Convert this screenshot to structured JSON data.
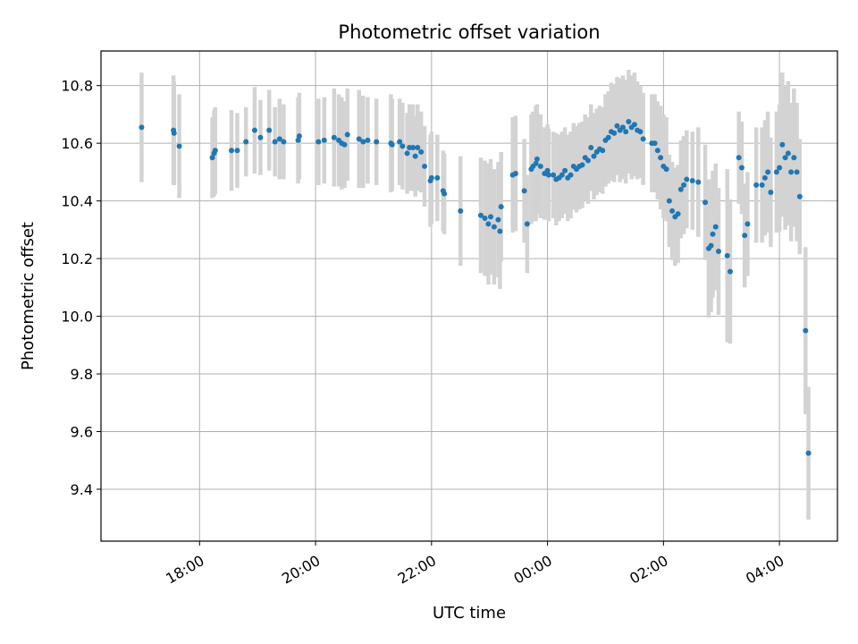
{
  "chart_data": {
    "type": "scatter",
    "title": "Photometric offset variation",
    "xlabel": "UTC time",
    "ylabel": "Photometric offset",
    "x_unit": "hours relative to 00:00 UTC",
    "xlim": [
      -3.7,
      9.0
    ],
    "ylim": [
      9.22,
      10.92
    ],
    "x_ticks": [
      {
        "value": -2,
        "label": "18:00"
      },
      {
        "value": 0,
        "label": "20:00"
      },
      {
        "value": 2,
        "label": "22:00"
      },
      {
        "value": 4,
        "label": "00:00"
      },
      {
        "value": 6,
        "label": "02:00"
      },
      {
        "value": 8,
        "label": "04:00"
      }
    ],
    "y_ticks": [
      {
        "value": 9.4,
        "label": "9.4"
      },
      {
        "value": 9.6,
        "label": "9.6"
      },
      {
        "value": 9.8,
        "label": "9.8"
      },
      {
        "value": 10.0,
        "label": "10.0"
      },
      {
        "value": 10.2,
        "label": "10.2"
      },
      {
        "value": 10.4,
        "label": "10.4"
      },
      {
        "value": 10.6,
        "label": "10.6"
      },
      {
        "value": 10.8,
        "label": "10.8"
      }
    ],
    "grid": true,
    "colors": {
      "points": "#1f77b4",
      "errorbars": "#d3d3d3",
      "grid": "#b0b0b0"
    },
    "series": [
      {
        "points": [
          [
            -3.0,
            10.655,
            0.19
          ],
          [
            -2.45,
            10.645,
            0.19
          ],
          [
            -2.44,
            10.635,
            0.18
          ],
          [
            -2.35,
            10.59,
            0.18
          ],
          [
            -1.78,
            10.55,
            0.14
          ],
          [
            -1.75,
            10.565,
            0.15
          ],
          [
            -1.73,
            10.575,
            0.15
          ],
          [
            -1.45,
            10.575,
            0.14
          ],
          [
            -1.35,
            10.575,
            0.13
          ],
          [
            -1.2,
            10.605,
            0.12
          ],
          [
            -1.05,
            10.645,
            0.15
          ],
          [
            -0.95,
            10.62,
            0.13
          ],
          [
            -0.8,
            10.645,
            0.14
          ],
          [
            -0.7,
            10.605,
            0.12
          ],
          [
            -0.62,
            10.615,
            0.14
          ],
          [
            -0.55,
            10.605,
            0.13
          ],
          [
            -0.3,
            10.61,
            0.15
          ],
          [
            -0.28,
            10.625,
            0.15
          ],
          [
            0.05,
            10.605,
            0.15
          ],
          [
            0.15,
            10.61,
            0.15
          ],
          [
            0.32,
            10.62,
            0.17
          ],
          [
            0.4,
            10.61,
            0.16
          ],
          [
            0.45,
            10.6,
            0.16
          ],
          [
            0.5,
            10.595,
            0.15
          ],
          [
            0.55,
            10.63,
            0.16
          ],
          [
            0.75,
            10.615,
            0.17
          ],
          [
            0.82,
            10.605,
            0.16
          ],
          [
            0.9,
            10.61,
            0.15
          ],
          [
            1.05,
            10.605,
            0.15
          ],
          [
            1.3,
            10.6,
            0.17
          ],
          [
            1.32,
            10.595,
            0.16
          ],
          [
            1.45,
            10.605,
            0.15
          ],
          [
            1.5,
            10.59,
            0.15
          ],
          [
            1.58,
            10.565,
            0.14
          ],
          [
            1.62,
            10.585,
            0.15
          ],
          [
            1.68,
            10.585,
            0.15
          ],
          [
            1.72,
            10.555,
            0.14
          ],
          [
            1.76,
            10.585,
            0.15
          ],
          [
            1.82,
            10.57,
            0.14
          ],
          [
            1.88,
            10.52,
            0.14
          ],
          [
            1.98,
            10.47,
            0.16
          ],
          [
            2.0,
            10.48,
            0.16
          ],
          [
            2.1,
            10.48,
            0.15
          ],
          [
            2.2,
            10.435,
            0.14
          ],
          [
            2.22,
            10.425,
            0.14
          ],
          [
            2.5,
            10.365,
            0.19
          ],
          [
            2.85,
            10.35,
            0.2
          ],
          [
            2.92,
            10.34,
            0.2
          ],
          [
            2.98,
            10.32,
            0.21
          ],
          [
            3.02,
            10.345,
            0.2
          ],
          [
            3.08,
            10.31,
            0.2
          ],
          [
            3.15,
            10.335,
            0.2
          ],
          [
            3.18,
            10.295,
            0.2
          ],
          [
            3.2,
            10.38,
            0.19
          ],
          [
            3.4,
            10.49,
            0.2
          ],
          [
            3.45,
            10.495,
            0.2
          ],
          [
            3.6,
            10.435,
            0.18
          ],
          [
            3.65,
            10.32,
            0.17
          ],
          [
            3.72,
            10.51,
            0.19
          ],
          [
            3.75,
            10.52,
            0.19
          ],
          [
            3.8,
            10.53,
            0.2
          ],
          [
            3.82,
            10.545,
            0.19
          ],
          [
            3.88,
            10.52,
            0.18
          ],
          [
            3.95,
            10.495,
            0.16
          ],
          [
            4.0,
            10.505,
            0.16
          ],
          [
            4.02,
            10.49,
            0.16
          ],
          [
            4.1,
            10.49,
            0.15
          ],
          [
            4.15,
            10.475,
            0.16
          ],
          [
            4.2,
            10.48,
            0.15
          ],
          [
            4.25,
            10.49,
            0.15
          ],
          [
            4.3,
            10.505,
            0.15
          ],
          [
            4.35,
            10.48,
            0.15
          ],
          [
            4.4,
            10.49,
            0.15
          ],
          [
            4.45,
            10.52,
            0.15
          ],
          [
            4.5,
            10.51,
            0.15
          ],
          [
            4.55,
            10.52,
            0.15
          ],
          [
            4.6,
            10.525,
            0.15
          ],
          [
            4.65,
            10.55,
            0.15
          ],
          [
            4.7,
            10.54,
            0.15
          ],
          [
            4.75,
            10.585,
            0.15
          ],
          [
            4.8,
            10.555,
            0.15
          ],
          [
            4.85,
            10.57,
            0.15
          ],
          [
            4.9,
            10.58,
            0.15
          ],
          [
            4.95,
            10.575,
            0.15
          ],
          [
            5.0,
            10.61,
            0.16
          ],
          [
            5.05,
            10.62,
            0.16
          ],
          [
            5.1,
            10.64,
            0.17
          ],
          [
            5.15,
            10.635,
            0.17
          ],
          [
            5.2,
            10.66,
            0.17
          ],
          [
            5.25,
            10.645,
            0.18
          ],
          [
            5.3,
            10.655,
            0.18
          ],
          [
            5.35,
            10.64,
            0.18
          ],
          [
            5.4,
            10.675,
            0.18
          ],
          [
            5.45,
            10.655,
            0.18
          ],
          [
            5.5,
            10.665,
            0.18
          ],
          [
            5.55,
            10.645,
            0.17
          ],
          [
            5.6,
            10.64,
            0.16
          ],
          [
            5.65,
            10.615,
            0.16
          ],
          [
            5.8,
            10.6,
            0.17
          ],
          [
            5.85,
            10.6,
            0.17
          ],
          [
            5.9,
            10.575,
            0.17
          ],
          [
            5.95,
            10.55,
            0.18
          ],
          [
            6.0,
            10.52,
            0.18
          ],
          [
            6.05,
            10.51,
            0.18
          ],
          [
            6.1,
            10.4,
            0.16
          ],
          [
            6.15,
            10.365,
            0.17
          ],
          [
            6.2,
            10.345,
            0.17
          ],
          [
            6.25,
            10.355,
            0.17
          ],
          [
            6.3,
            10.44,
            0.17
          ],
          [
            6.35,
            10.455,
            0.17
          ],
          [
            6.4,
            10.475,
            0.17
          ],
          [
            6.5,
            10.47,
            0.17
          ],
          [
            6.6,
            10.465,
            0.19
          ],
          [
            6.72,
            10.395,
            0.2
          ],
          [
            6.78,
            10.235,
            0.24
          ],
          [
            6.82,
            10.245,
            0.23
          ],
          [
            6.85,
            10.285,
            0.22
          ],
          [
            6.9,
            10.31,
            0.22
          ],
          [
            6.95,
            10.225,
            0.22
          ],
          [
            7.1,
            10.21,
            0.3
          ],
          [
            7.15,
            10.155,
            0.25
          ],
          [
            7.3,
            10.55,
            0.16
          ],
          [
            7.35,
            10.515,
            0.16
          ],
          [
            7.4,
            10.28,
            0.18
          ],
          [
            7.45,
            10.32,
            0.18
          ],
          [
            7.6,
            10.455,
            0.2
          ],
          [
            7.7,
            10.455,
            0.2
          ],
          [
            7.75,
            10.48,
            0.2
          ],
          [
            7.8,
            10.5,
            0.21
          ],
          [
            7.85,
            10.43,
            0.19
          ],
          [
            7.95,
            10.5,
            0.21
          ],
          [
            8.0,
            10.515,
            0.22
          ],
          [
            8.05,
            10.595,
            0.25
          ],
          [
            8.1,
            10.55,
            0.25
          ],
          [
            8.15,
            10.565,
            0.25
          ],
          [
            8.2,
            10.5,
            0.24
          ],
          [
            8.25,
            10.55,
            0.24
          ],
          [
            8.3,
            10.5,
            0.24
          ],
          [
            8.35,
            10.415,
            0.2
          ],
          [
            8.45,
            9.95,
            0.29
          ],
          [
            8.5,
            9.525,
            0.23
          ]
        ]
      }
    ]
  }
}
